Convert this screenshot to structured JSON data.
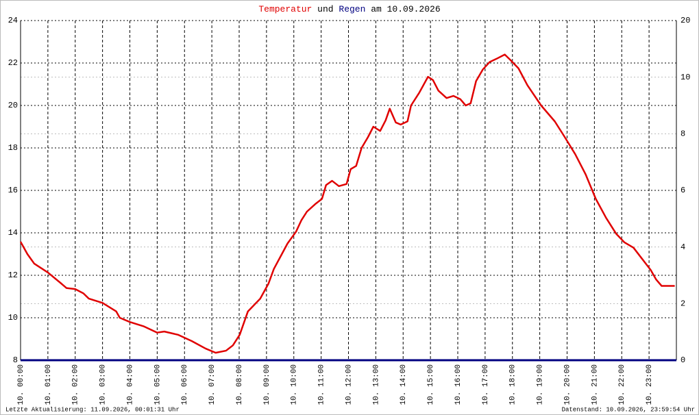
{
  "chart_data": {
    "type": "line",
    "title_connector": "und",
    "title_date": "am 10.09.2026",
    "x": [
      0,
      0.25,
      0.5,
      1.0,
      1.5,
      1.68,
      2.0,
      2.3,
      2.5,
      3.0,
      3.5,
      3.63,
      4.0,
      4.5,
      5.0,
      5.26,
      5.76,
      6.27,
      6.77,
      7.14,
      7.52,
      7.77,
      8.02,
      8.32,
      8.77,
      9.07,
      9.27,
      9.52,
      9.77,
      10.08,
      10.28,
      10.48,
      10.78,
      11.03,
      11.18,
      11.4,
      11.65,
      11.93,
      12.08,
      12.28,
      12.48,
      12.71,
      12.91,
      13.16,
      13.36,
      13.51,
      13.73,
      13.91,
      14.16,
      14.29,
      14.59,
      14.91,
      15.09,
      15.29,
      15.59,
      15.84,
      16.09,
      16.29,
      16.47,
      16.67,
      16.92,
      17.17,
      17.42,
      17.72,
      17.92,
      18.22,
      18.55,
      19.05,
      19.55,
      19.92,
      20.3,
      20.68,
      21.05,
      21.43,
      21.8,
      22.1,
      22.43,
      22.73,
      23.06,
      23.26,
      23.46,
      23.68,
      23.94
    ],
    "series": [
      {
        "name": "Temperatur",
        "color": "#e00000",
        "values": [
          13.58,
          13.0,
          12.55,
          12.13,
          11.6,
          11.4,
          11.35,
          11.15,
          10.9,
          10.7,
          10.3,
          10.0,
          9.8,
          9.6,
          9.3,
          9.35,
          9.2,
          8.9,
          8.55,
          8.35,
          8.45,
          8.7,
          9.2,
          10.3,
          10.9,
          11.6,
          12.3,
          12.9,
          13.5,
          14.05,
          14.6,
          15.0,
          15.35,
          15.6,
          16.25,
          16.45,
          16.2,
          16.3,
          17.0,
          17.15,
          18.0,
          18.5,
          19.0,
          18.8,
          19.3,
          19.85,
          19.2,
          19.1,
          19.25,
          20.0,
          20.6,
          21.35,
          21.2,
          20.7,
          20.35,
          20.45,
          20.3,
          20.0,
          20.1,
          21.15,
          21.7,
          22.05,
          22.2,
          22.4,
          22.15,
          21.75,
          20.95,
          20.0,
          19.25,
          18.5,
          17.7,
          16.75,
          15.6,
          14.7,
          13.95,
          13.55,
          13.3,
          12.8,
          12.25,
          11.8,
          11.5,
          11.5,
          11.5
        ]
      },
      {
        "name": "Regen",
        "color": "#000080",
        "axis": "y2",
        "x": [
          0,
          24
        ],
        "values": [
          0,
          0
        ]
      }
    ],
    "xlim": [
      0,
      24
    ],
    "xticks": [
      {
        "value": 0,
        "label": "10. 00:00"
      },
      {
        "value": 1,
        "label": "10. 01:00"
      },
      {
        "value": 2,
        "label": "10. 02:00"
      },
      {
        "value": 3,
        "label": "10. 03:00"
      },
      {
        "value": 4,
        "label": "10. 04:00"
      },
      {
        "value": 5,
        "label": "10. 05:00"
      },
      {
        "value": 6,
        "label": "10. 06:00"
      },
      {
        "value": 7,
        "label": "10. 07:00"
      },
      {
        "value": 8,
        "label": "10. 08:00"
      },
      {
        "value": 9,
        "label": "10. 09:00"
      },
      {
        "value": 10,
        "label": "10. 10:00"
      },
      {
        "value": 11,
        "label": "10. 11:00"
      },
      {
        "value": 12,
        "label": "10. 12:00"
      },
      {
        "value": 13,
        "label": "10. 13:00"
      },
      {
        "value": 14,
        "label": "10. 14:00"
      },
      {
        "value": 15,
        "label": "10. 15:00"
      },
      {
        "value": 16,
        "label": "10. 16:00"
      },
      {
        "value": 17,
        "label": "10. 17:00"
      },
      {
        "value": 18,
        "label": "10. 18:00"
      },
      {
        "value": 19,
        "label": "10. 19:00"
      },
      {
        "value": 20,
        "label": "10. 20:00"
      },
      {
        "value": 21,
        "label": "10. 21:00"
      },
      {
        "value": 22,
        "label": "10. 22:00"
      },
      {
        "value": 23,
        "label": "10. 23:00"
      }
    ],
    "ylim": [
      8,
      24
    ],
    "yticks": [
      8,
      10,
      12,
      14,
      16,
      18,
      20,
      22,
      24
    ],
    "y2lim": [
      0,
      12
    ],
    "y2ticks": [
      0,
      2,
      4,
      6,
      8,
      10
    ],
    "y2_top_label": "20",
    "y2_color": "#00c000",
    "grid": true,
    "footer_left": "Letzte Aktualisierung: 11.09.2026, 00:01:31 Uhr",
    "footer_right": "Datenstand: 10.09.2026, 23:59:54 Uhr"
  }
}
